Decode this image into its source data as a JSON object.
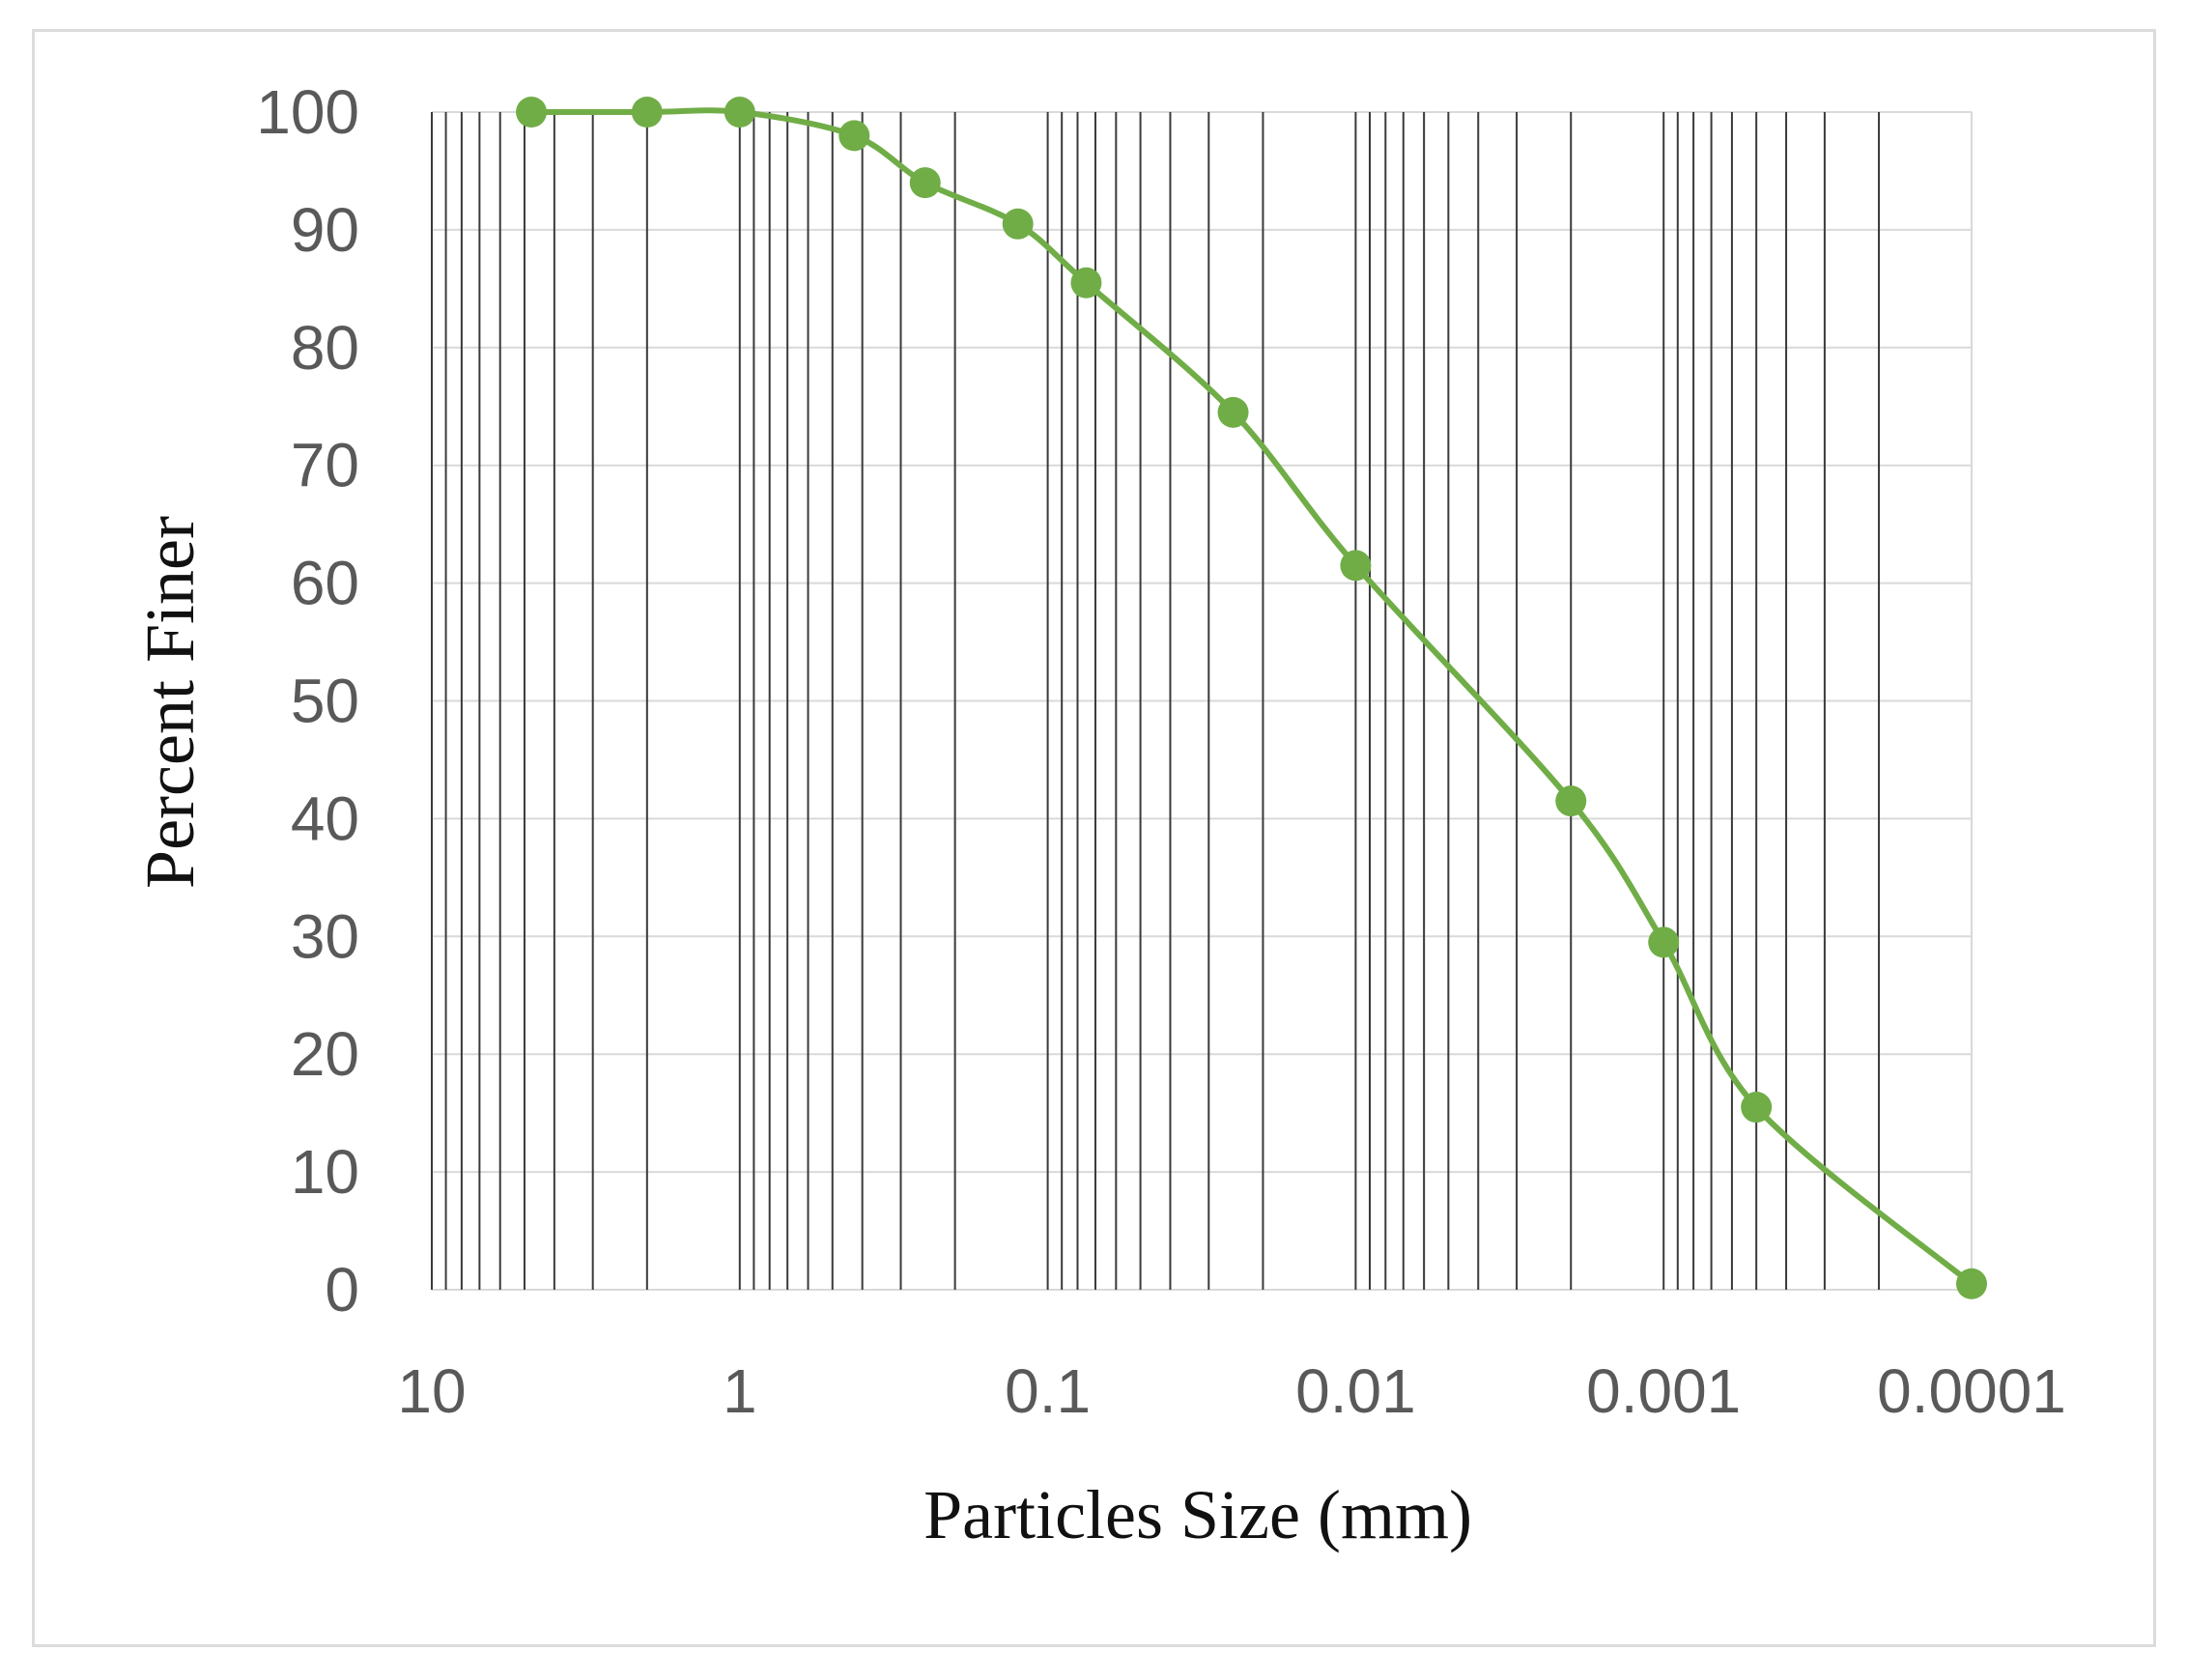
{
  "chart_data": {
    "type": "line",
    "title": "",
    "xlabel": "Particles Size (mm)",
    "ylabel": "Percent Finer",
    "x_scale": "log",
    "x_reversed": true,
    "xlim": [
      10,
      0.0001
    ],
    "ylim": [
      0,
      100
    ],
    "x_tick_labels": [
      "10",
      "1",
      "0.1",
      "0.01",
      "0.001",
      "0.0001"
    ],
    "y_tick_labels": [
      "0",
      "10",
      "20",
      "30",
      "40",
      "50",
      "60",
      "70",
      "80",
      "90",
      "100"
    ],
    "grid": {
      "vertical_log_minor": true,
      "horizontal_major": true
    },
    "legend": "none",
    "series": [
      {
        "color": "#70ad47",
        "marker": "circle",
        "smooth": true,
        "x": [
          4.75,
          2.0,
          1.0,
          0.425,
          0.25,
          0.125,
          0.075,
          0.025,
          0.01,
          0.002,
          0.001,
          0.0005,
          0.0001
        ],
        "y": [
          100,
          100,
          100,
          98,
          94,
          90.5,
          85.5,
          74.5,
          61.5,
          41.5,
          29.5,
          15.5,
          0.5
        ]
      }
    ]
  },
  "colors": {
    "series": "#70ad47",
    "grid": "#d9d9d9",
    "vertical_grid": "#3a3a3a",
    "tick_label": "#595959",
    "axis_title": "#111111",
    "frame_border": "#dcdcdc"
  }
}
